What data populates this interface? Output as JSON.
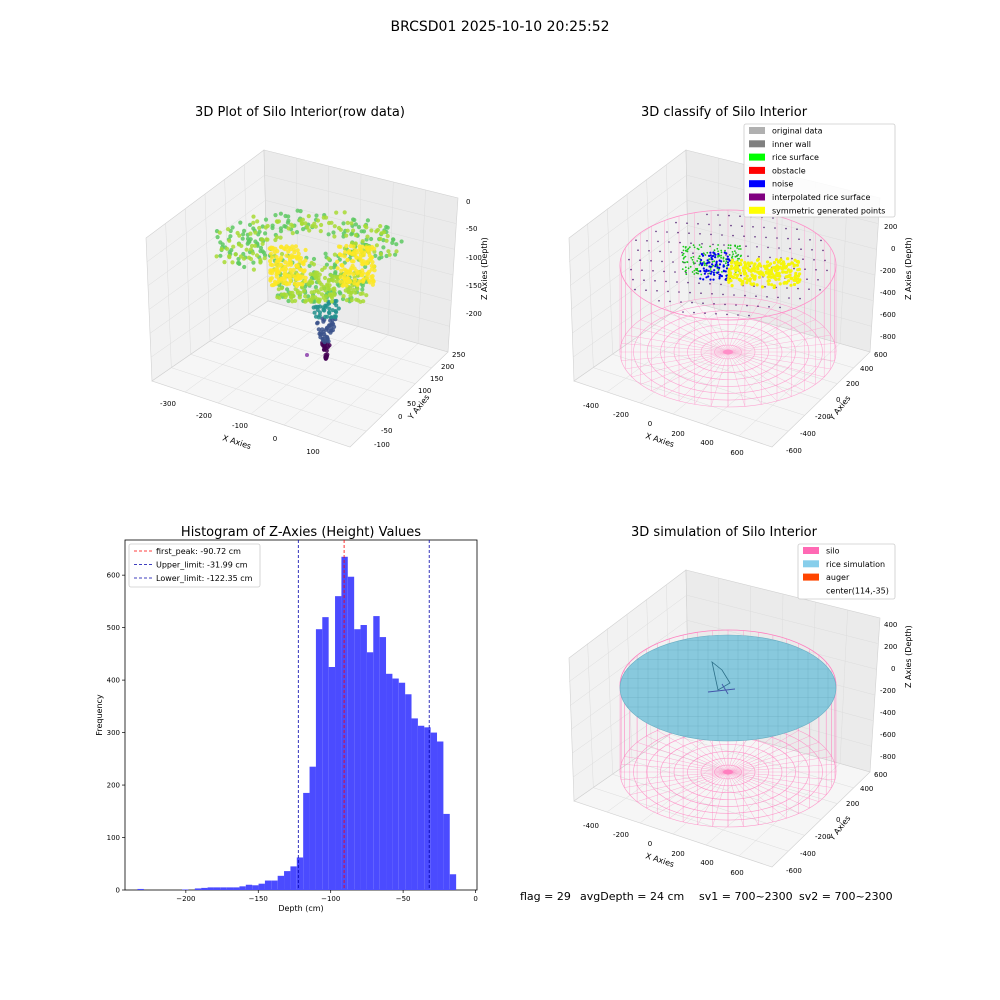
{
  "suptitle": "BRCSD01 2025-10-10 20:25:52",
  "status_line": {
    "flag": "flag = 29",
    "avg_depth": "avgDepth = 24 cm",
    "sv1": "sv1 = 700~2300",
    "sv2": "sv2 = 700~2300"
  },
  "chart_data": [
    {
      "type": "scatter",
      "projection": "3d",
      "title": "3D Plot of Silo Interior(row data)",
      "xlabel": "X Axies",
      "ylabel": "Y Axies",
      "zlabel": "Z Axies (Depth)",
      "x_ticks": [
        "-300",
        "-200",
        "-100",
        "0",
        "100"
      ],
      "y_ticks": [
        "-100",
        "-50",
        "0",
        "50",
        "100",
        "150",
        "200",
        "250"
      ],
      "z_ticks": [
        "0",
        "-50",
        "-100",
        "-150",
        "-200"
      ],
      "colormap": "viridis",
      "grid": true
    },
    {
      "type": "scatter",
      "projection": "3d",
      "title": "3D classify of Silo Interior",
      "xlabel": "X Axies",
      "ylabel": "Y Axies",
      "zlabel": "Z Axies (Depth)",
      "x_ticks": [
        "-400",
        "-200",
        "0",
        "200",
        "400",
        "600"
      ],
      "y_ticks": [
        "-600",
        "-400",
        "-200",
        "0",
        "200",
        "400",
        "600"
      ],
      "z_ticks": [
        "200",
        "0",
        "-200",
        "-400",
        "-600",
        "-800"
      ],
      "legend_position": "top-right",
      "legend": [
        {
          "label": "original data",
          "color": "#b0b0b0"
        },
        {
          "label": "inner wall",
          "color": "#808080"
        },
        {
          "label": "rice surface",
          "color": "#00ff00"
        },
        {
          "label": "obstacle",
          "color": "#ff0000"
        },
        {
          "label": "noise",
          "color": "#0000ff"
        },
        {
          "label": "interpolated rice surface",
          "color": "#800080"
        },
        {
          "label": "symmetric generated points",
          "color": "#ffff00"
        }
      ],
      "grid": true
    },
    {
      "type": "bar",
      "title": "Histogram of Z-Axies (Height) Values",
      "xlabel": "Depth (cm)",
      "ylabel": "Frequency",
      "xlim": [
        -242,
        1
      ],
      "ylim": [
        0,
        667
      ],
      "x_ticks": [
        "-200",
        "-150",
        "-100",
        "-50",
        "0"
      ],
      "y_ticks": [
        "0",
        "100",
        "200",
        "300",
        "400",
        "500",
        "600"
      ],
      "bar_color": "#4b4bff",
      "bin_width": 4.4,
      "bins": [
        {
          "x": -233.4,
          "count": 2
        },
        {
          "x": -202.6,
          "count": 1
        },
        {
          "x": -193.8,
          "count": 3
        },
        {
          "x": -189.4,
          "count": 4
        },
        {
          "x": -185.0,
          "count": 5
        },
        {
          "x": -180.6,
          "count": 5
        },
        {
          "x": -176.2,
          "count": 5
        },
        {
          "x": -171.8,
          "count": 5
        },
        {
          "x": -167.4,
          "count": 5
        },
        {
          "x": -163.0,
          "count": 7
        },
        {
          "x": -158.6,
          "count": 10
        },
        {
          "x": -154.2,
          "count": 9
        },
        {
          "x": -149.8,
          "count": 12
        },
        {
          "x": -145.4,
          "count": 18
        },
        {
          "x": -141.0,
          "count": 18
        },
        {
          "x": -136.6,
          "count": 27
        },
        {
          "x": -132.2,
          "count": 36
        },
        {
          "x": -127.8,
          "count": 45
        },
        {
          "x": -123.4,
          "count": 62
        },
        {
          "x": -119.0,
          "count": 185
        },
        {
          "x": -114.6,
          "count": 235
        },
        {
          "x": -110.2,
          "count": 497
        },
        {
          "x": -105.8,
          "count": 520
        },
        {
          "x": -101.4,
          "count": 425
        },
        {
          "x": -97.0,
          "count": 560
        },
        {
          "x": -92.6,
          "count": 635
        },
        {
          "x": -88.2,
          "count": 597
        },
        {
          "x": -83.8,
          "count": 497
        },
        {
          "x": -79.4,
          "count": 505
        },
        {
          "x": -75.0,
          "count": 453
        },
        {
          "x": -70.6,
          "count": 522
        },
        {
          "x": -66.2,
          "count": 482
        },
        {
          "x": -61.8,
          "count": 412
        },
        {
          "x": -57.4,
          "count": 403
        },
        {
          "x": -53.0,
          "count": 395
        },
        {
          "x": -48.6,
          "count": 373
        },
        {
          "x": -44.2,
          "count": 327
        },
        {
          "x": -39.8,
          "count": 313
        },
        {
          "x": -35.4,
          "count": 310
        },
        {
          "x": -31.0,
          "count": 300
        },
        {
          "x": -26.6,
          "count": 283
        },
        {
          "x": -22.2,
          "count": 145
        },
        {
          "x": -17.8,
          "count": 30
        }
      ],
      "vlines": [
        {
          "label": "first_peak: -90.72 cm",
          "value": -90.72,
          "color": "#ff0000"
        },
        {
          "label": "Upper_limit: -31.99 cm",
          "value": -31.99,
          "color": "#0000aa"
        },
        {
          "label": "Lower_limit: -122.35 cm",
          "value": -122.35,
          "color": "#0000aa"
        }
      ],
      "legend_position": "top-left",
      "grid": false
    },
    {
      "type": "scatter",
      "projection": "3d",
      "title": "3D simulation of Silo Interior",
      "xlabel": "X Axies",
      "ylabel": "Y Axies",
      "zlabel": "Z Axies (Depth)",
      "x_ticks": [
        "-400",
        "-200",
        "0",
        "200",
        "400",
        "600"
      ],
      "y_ticks": [
        "-600",
        "-400",
        "-200",
        "0",
        "200",
        "400",
        "600"
      ],
      "z_ticks": [
        "400",
        "200",
        "0",
        "-200",
        "-400",
        "-600",
        "-800"
      ],
      "legend_position": "top-right",
      "legend": [
        {
          "label": "silo",
          "color": "#ff69b4"
        },
        {
          "label": "rice simulation",
          "color": "#87ceeb"
        },
        {
          "label": "auger",
          "color": "#ff4500"
        },
        {
          "label": "center(114,-35)",
          "color": ""
        }
      ],
      "grid": true
    }
  ]
}
